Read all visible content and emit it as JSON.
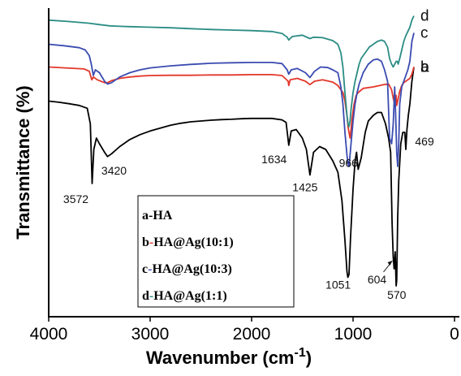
{
  "chart_data": {
    "type": "line",
    "title": "",
    "xlabel": "Wavenumber (cm",
    "xlabel_sup": "-1",
    "xlabel_close": ")",
    "ylabel": "Transmittance (%)",
    "xlim": [
      4000,
      0
    ],
    "x_ticks": [
      4000,
      3000,
      2000,
      1000,
      0
    ],
    "x_tick_labels": [
      "4000",
      "3000",
      "2000",
      "1000",
      "0"
    ],
    "ylim": [
      0,
      100
    ],
    "y_ticks_shown": false,
    "grid": false,
    "legend_position": "bottom-center",
    "legend": [
      {
        "letter": "a",
        "text": "-HA"
      },
      {
        "letter": "b",
        "text": "-HA@Ag(10:1)"
      },
      {
        "letter": "c",
        "text": "-HA@Ag(10:3)"
      },
      {
        "letter": "d",
        "text": "-HA@Ag(1:1)"
      }
    ],
    "series": [
      {
        "name": "a",
        "color": "#000000",
        "x": [
          4000,
          3900,
          3800,
          3700,
          3620,
          3590,
          3572,
          3555,
          3530,
          3500,
          3450,
          3420,
          3380,
          3300,
          3200,
          3100,
          3000,
          2900,
          2800,
          2700,
          2600,
          2500,
          2400,
          2300,
          2200,
          2100,
          2000,
          1900,
          1800,
          1700,
          1660,
          1634,
          1610,
          1560,
          1500,
          1460,
          1425,
          1390,
          1330,
          1270,
          1200,
          1150,
          1110,
          1080,
          1060,
          1051,
          1040,
          1025,
          1000,
          980,
          966,
          950,
          920,
          880,
          850,
          800,
          760,
          720,
          680,
          650,
          630,
          615,
          604,
          595,
          585,
          575,
          570,
          560,
          550,
          530,
          510,
          490,
          480,
          469,
          455,
          440,
          420,
          400
        ],
        "y": [
          73,
          72.6,
          72.1,
          71.5,
          70.5,
          65,
          44,
          56,
          60,
          58,
          55,
          53.5,
          54.5,
          57,
          59.5,
          61.2,
          62.5,
          63.5,
          64.5,
          65.2,
          65.7,
          66,
          66.3,
          66.5,
          66.6,
          66.8,
          66.9,
          66.9,
          66.9,
          66.4,
          65.5,
          57.5,
          62.5,
          63,
          60,
          56,
          47,
          55,
          57,
          56,
          52,
          48,
          38,
          24,
          13,
          11,
          12,
          25,
          42,
          52,
          55,
          49,
          53,
          62,
          66,
          68,
          69,
          69,
          65,
          60,
          55,
          30,
          18,
          14,
          20,
          8,
          10,
          32,
          45,
          58,
          62,
          62,
          56,
          63,
          68,
          72,
          80,
          85
        ]
      },
      {
        "name": "b",
        "color": "#e3372a",
        "x": [
          4000,
          3800,
          3650,
          3600,
          3575,
          3560,
          3520,
          3450,
          3420,
          3380,
          3300,
          3200,
          3100,
          3000,
          2800,
          2600,
          2400,
          2200,
          2000,
          1800,
          1700,
          1640,
          1634,
          1620,
          1550,
          1470,
          1425,
          1380,
          1300,
          1200,
          1150,
          1100,
          1080,
          1060,
          1050,
          1040,
          1030,
          1020,
          1010,
          990,
          970,
          950,
          900,
          800,
          700,
          650,
          620,
          604,
          590,
          575,
          570,
          560,
          540,
          520,
          500,
          480,
          460,
          440,
          420,
          400
        ],
        "y": [
          85,
          84.6,
          84.3,
          83.5,
          80.5,
          81.5,
          80.5,
          79.5,
          79.5,
          80.2,
          81,
          81.5,
          81.8,
          82,
          82.1,
          82.1,
          82.2,
          82.2,
          82.3,
          82.3,
          82,
          80,
          78.5,
          80.5,
          81,
          80,
          78.8,
          80,
          80.5,
          79.7,
          78.5,
          76,
          73,
          68,
          64,
          62,
          60,
          63,
          67,
          72,
          75,
          76,
          77.5,
          78,
          78.8,
          79,
          77,
          74,
          72,
          75,
          71.5,
          73,
          76.5,
          78.5,
          79.5,
          80,
          80.5,
          81,
          82.5,
          85
        ]
      },
      {
        "name": "c",
        "color": "#3a4bb0",
        "x": [
          4000,
          3850,
          3700,
          3640,
          3600,
          3580,
          3560,
          3540,
          3500,
          3450,
          3420,
          3380,
          3300,
          3200,
          3100,
          3000,
          2800,
          2600,
          2400,
          2200,
          2000,
          1800,
          1700,
          1650,
          1634,
          1610,
          1550,
          1470,
          1425,
          1380,
          1320,
          1250,
          1200,
          1150,
          1120,
          1100,
          1080,
          1060,
          1050,
          1040,
          1030,
          1020,
          1000,
          980,
          960,
          940,
          900,
          850,
          800,
          760,
          720,
          690,
          660,
          640,
          620,
          604,
          590,
          580,
          570,
          560,
          550,
          540,
          520,
          500,
          480,
          460,
          440,
          420,
          400
        ],
        "y": [
          93,
          92.5,
          91.8,
          91,
          89,
          86,
          82,
          84,
          83,
          80,
          79,
          79.5,
          81.5,
          83,
          84,
          84.7,
          85.4,
          85.9,
          86.3,
          86.5,
          86.6,
          86.6,
          86.2,
          84,
          82.5,
          84,
          84.5,
          83,
          81.3,
          83.5,
          85,
          84.8,
          84,
          83,
          78,
          72,
          62,
          54,
          51,
          50,
          54,
          58,
          66,
          72,
          76,
          79,
          83,
          86,
          87.5,
          87.8,
          87,
          84,
          80,
          60,
          58,
          65,
          78,
          68,
          55,
          50,
          58,
          72,
          78,
          80,
          82,
          84,
          87,
          94,
          97
        ]
      },
      {
        "name": "d",
        "color": "#2a8c84",
        "x": [
          4000,
          3800,
          3600,
          3500,
          3400,
          3300,
          3200,
          3000,
          2800,
          2600,
          2400,
          2200,
          2000,
          1800,
          1700,
          1650,
          1634,
          1600,
          1500,
          1470,
          1425,
          1390,
          1300,
          1200,
          1150,
          1120,
          1100,
          1080,
          1060,
          1050,
          1040,
          1030,
          1020,
          1000,
          980,
          960,
          940,
          920,
          880,
          840,
          800,
          760,
          720,
          690,
          660,
          640,
          620,
          604,
          590,
          575,
          570,
          565,
          555,
          540,
          520,
          500,
          480,
          460,
          440,
          420,
          400
        ],
        "y": [
          101.5,
          101,
          100.4,
          99.9,
          99.5,
          99.3,
          99.2,
          99,
          98.8,
          98.5,
          98.2,
          98,
          97.8,
          97.5,
          96.8,
          95.5,
          94.5,
          95.7,
          96.2,
          95.7,
          95,
          95.5,
          95.3,
          94.3,
          93,
          90,
          85,
          76,
          68,
          65,
          64,
          66,
          70,
          76,
          80,
          83,
          86,
          88,
          90,
          92,
          93,
          94,
          94.5,
          94,
          92,
          88,
          86,
          85,
          86,
          87,
          87,
          87,
          86,
          88,
          91,
          94,
          96,
          97.5,
          99,
          101.5,
          103
        ]
      }
    ],
    "annotations": [
      {
        "text": "3572",
        "x": 3572,
        "y": 44
      },
      {
        "text": "3420",
        "x": 3420,
        "y": 53.5
      },
      {
        "text": "1634",
        "x": 1634,
        "y": 57.5
      },
      {
        "text": "1425",
        "x": 1425,
        "y": 47
      },
      {
        "text": "1051",
        "x": 1051,
        "y": 11
      },
      {
        "text": "966",
        "x": 966,
        "y": 55
      },
      {
        "text": "604",
        "x": 604,
        "y": 18
      },
      {
        "text": "570",
        "x": 570,
        "y": 8
      },
      {
        "text": "469",
        "x": 469,
        "y": 62
      }
    ]
  }
}
